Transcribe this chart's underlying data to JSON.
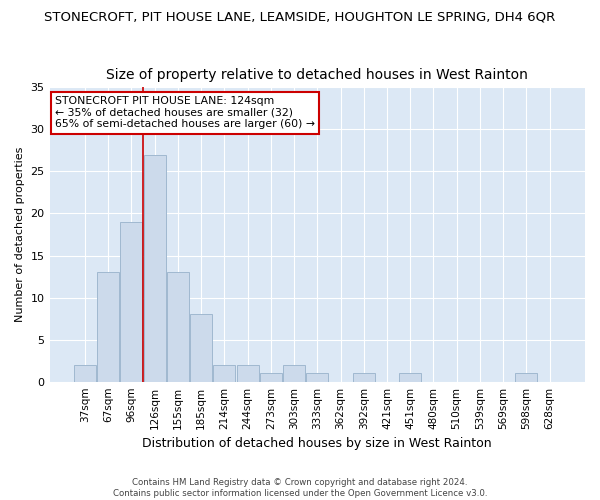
{
  "title1": "STONECROFT, PIT HOUSE LANE, LEAMSIDE, HOUGHTON LE SPRING, DH4 6QR",
  "title2": "Size of property relative to detached houses in West Rainton",
  "xlabel": "Distribution of detached houses by size in West Rainton",
  "ylabel": "Number of detached properties",
  "categories": [
    "37sqm",
    "67sqm",
    "96sqm",
    "126sqm",
    "155sqm",
    "185sqm",
    "214sqm",
    "244sqm",
    "273sqm",
    "303sqm",
    "333sqm",
    "362sqm",
    "392sqm",
    "421sqm",
    "451sqm",
    "480sqm",
    "510sqm",
    "539sqm",
    "569sqm",
    "598sqm",
    "628sqm"
  ],
  "values": [
    2,
    13,
    19,
    27,
    13,
    8,
    2,
    2,
    1,
    2,
    1,
    0,
    1,
    0,
    1,
    0,
    0,
    0,
    0,
    1,
    0
  ],
  "bar_color": "#ccdaeb",
  "bar_edge_color": "#a0b8d0",
  "red_line_index": 3,
  "ylim": [
    0,
    35
  ],
  "yticks": [
    0,
    5,
    10,
    15,
    20,
    25,
    30,
    35
  ],
  "annotation_line1": "STONECROFT PIT HOUSE LANE: 124sqm",
  "annotation_line2": "← 35% of detached houses are smaller (32)",
  "annotation_line3": "65% of semi-detached houses are larger (60) →",
  "annotation_box_color": "#ffffff",
  "annotation_box_edge": "#cc0000",
  "footer1": "Contains HM Land Registry data © Crown copyright and database right 2024.",
  "footer2": "Contains public sector information licensed under the Open Government Licence v3.0.",
  "fig_background": "#ffffff",
  "plot_background": "#dce8f5",
  "grid_color": "#ffffff",
  "title1_fontsize": 9.5,
  "title2_fontsize": 10,
  "xlabel_fontsize": 9,
  "ylabel_fontsize": 8
}
